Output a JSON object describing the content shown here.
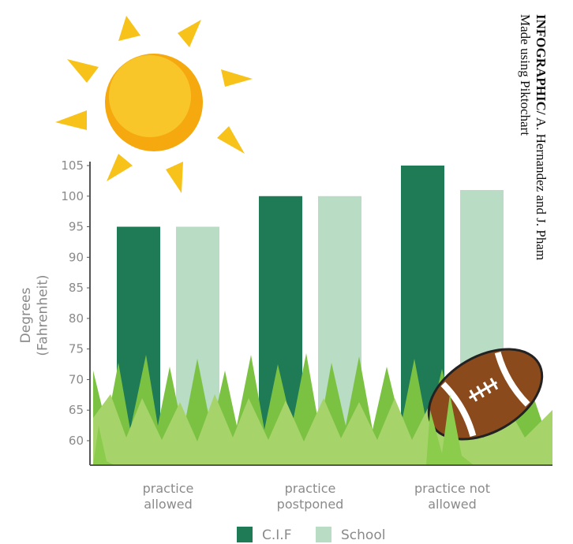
{
  "chart_data": {
    "type": "bar",
    "credit_label": "INFOGRAPHIC/",
    "credit_names": "A. Hernandez and J. Pham",
    "credit_tool": "Made using Piktochart",
    "ylabel": "Degrees\n(Fahrenheit)",
    "categories": [
      "practice\nallowed",
      "practice\npostponed",
      "practice not\nallowed"
    ],
    "series": [
      {
        "name": "C.I.F",
        "color": "#1f7a56",
        "values": [
          95,
          100,
          105
        ]
      },
      {
        "name": "School",
        "color": "#b8dcc4",
        "values": [
          95,
          100,
          101
        ]
      }
    ],
    "ylim": [
      56,
      105
    ],
    "yticks": [
      60,
      65,
      70,
      75,
      80,
      85,
      90,
      95,
      100,
      105
    ],
    "grid": false
  }
}
